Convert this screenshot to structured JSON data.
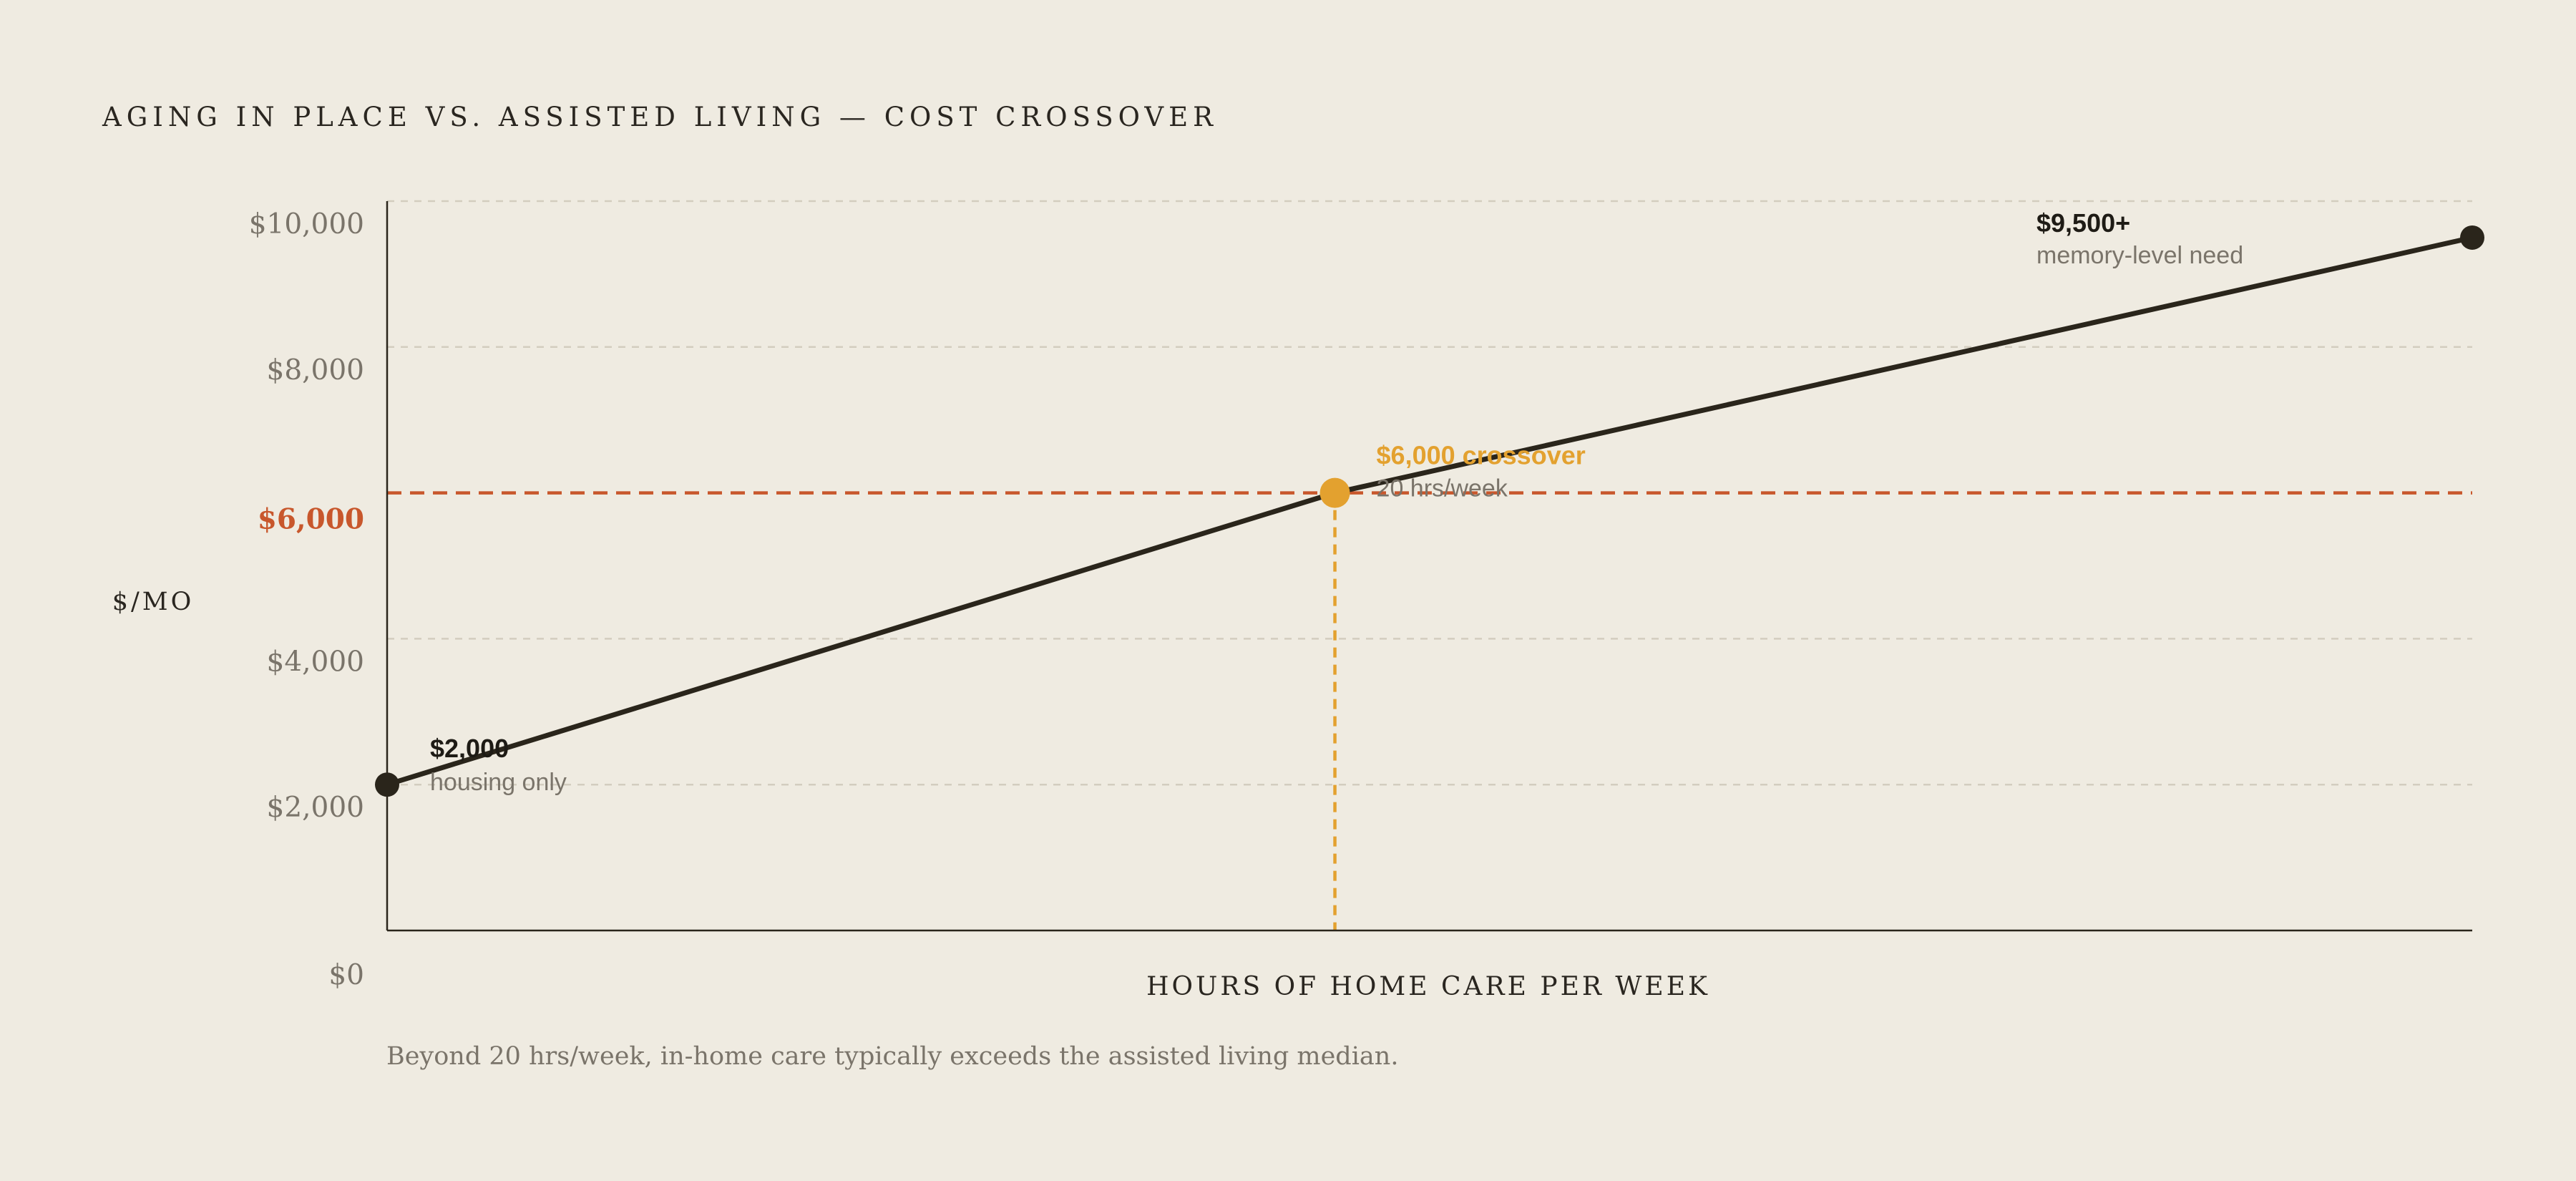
{
  "title": "AGING IN PLACE VS. ASSISTED LIVING — COST CROSSOVER",
  "footnote": "Beyond 20 hrs/week, in-home care typically exceeds the assisted living median.",
  "colors": {
    "background": "#efebe1",
    "line": "#2a251b",
    "threshold": "#c8572c",
    "crossover": "#e3a12f",
    "grid": "#d3cdbf",
    "muted": "#7a746a"
  },
  "chart_data": {
    "type": "line",
    "title": "AGING IN PLACE VS. ASSISTED LIVING — COST CROSSOVER",
    "xlabel": "HOURS OF HOME CARE PER WEEK",
    "ylabel": "$/MO",
    "ylim": [
      0,
      10000
    ],
    "y_ticks": [
      {
        "value": 10000,
        "label": "$10,000",
        "highlight": false
      },
      {
        "value": 8000,
        "label": "$8,000",
        "highlight": false
      },
      {
        "value": 6000,
        "label": "$6,000",
        "highlight": true
      },
      {
        "value": 4000,
        "label": "$4,000",
        "highlight": false
      },
      {
        "value": 2000,
        "label": "$2,000",
        "highlight": false
      },
      {
        "value": 0,
        "label": "$0",
        "highlight": false
      }
    ],
    "grid": true,
    "threshold": {
      "value": 6000
    },
    "series": [
      {
        "points": [
          {
            "x": 0,
            "y": 2000
          },
          {
            "x": 20,
            "y": 6000
          },
          {
            "x": 44,
            "y": 9500
          }
        ]
      }
    ],
    "xlim": [
      0,
      44
    ],
    "annotations": [
      {
        "x": 0,
        "y": 2000,
        "label": "$2,000",
        "sublabel": "housing only",
        "type": "start"
      },
      {
        "x": 20,
        "y": 6000,
        "label": "$6,000 crossover",
        "sublabel": "20 hrs/week",
        "type": "crossover"
      },
      {
        "x": 44,
        "y": 9500,
        "label": "$9,500+",
        "sublabel": "memory-level need",
        "type": "end"
      }
    ]
  }
}
